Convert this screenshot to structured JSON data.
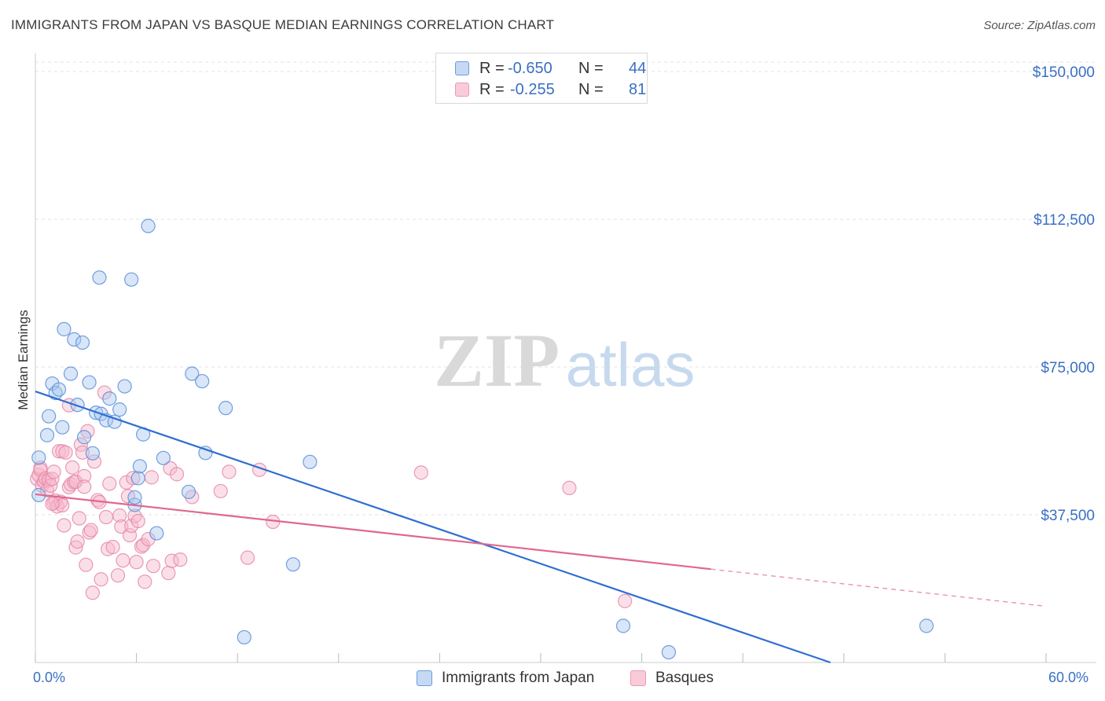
{
  "title": "IMMIGRANTS FROM JAPAN VS BASQUE MEDIAN EARNINGS CORRELATION CHART",
  "source": "Source: ZipAtlas.com",
  "watermark": {
    "zip": "ZIP",
    "atlas": "atlas"
  },
  "legend_top": {
    "rows": [
      {
        "r_label": "R =",
        "r_value": "-0.650",
        "n_label": "N =",
        "n_value": "44"
      },
      {
        "r_label": "R =",
        "r_value": "-0.255",
        "n_label": "N =",
        "n_value": "81"
      }
    ]
  },
  "colors": {
    "blue_fill": "#a9c7ef",
    "blue_stroke": "#5b8ed8",
    "blue_line": "#2f6fd0",
    "pink_fill": "#f6b9cc",
    "pink_stroke": "#e58aa8",
    "pink_line": "#e0678f",
    "accent_text": "#3a6fc4",
    "grid": "#e3e3e3"
  },
  "chart_data": {
    "type": "scatter",
    "title": "IMMIGRANTS FROM JAPAN VS BASQUE MEDIAN EARNINGS CORRELATION CHART",
    "xlabel": "",
    "ylabel": "Median Earnings",
    "xlim": [
      0,
      60
    ],
    "ylim": [
      0,
      150000
    ],
    "x_tick_labels": [
      "0.0%",
      "60.0%"
    ],
    "y_ticks": [
      37500,
      75000,
      112500,
      150000
    ],
    "y_tick_labels": [
      "$37,500",
      "$75,000",
      "$112,500",
      "$150,000"
    ],
    "legend": [
      "Immigrants from Japan",
      "Basques"
    ],
    "series": [
      {
        "name": "Immigrants from Japan",
        "r": -0.65,
        "n": 44,
        "trend": {
          "x0": 0,
          "y0": 68800,
          "x1": 47.2,
          "y1": 0,
          "dash_to_x": null
        },
        "points": [
          [
            0.2,
            52000
          ],
          [
            0.2,
            42500
          ],
          [
            0.7,
            57700
          ],
          [
            0.8,
            62500
          ],
          [
            1.0,
            70800
          ],
          [
            1.2,
            68400
          ],
          [
            1.4,
            69300
          ],
          [
            1.6,
            59700
          ],
          [
            1.7,
            84600
          ],
          [
            2.1,
            73300
          ],
          [
            2.3,
            82000
          ],
          [
            2.5,
            65400
          ],
          [
            2.8,
            81200
          ],
          [
            2.9,
            57200
          ],
          [
            3.2,
            71100
          ],
          [
            3.4,
            53100
          ],
          [
            3.6,
            63400
          ],
          [
            3.8,
            97700
          ],
          [
            3.9,
            63100
          ],
          [
            4.2,
            61500
          ],
          [
            4.4,
            67000
          ],
          [
            4.7,
            61100
          ],
          [
            5.0,
            64200
          ],
          [
            5.3,
            70100
          ],
          [
            5.7,
            97200
          ],
          [
            5.9,
            40000
          ],
          [
            5.9,
            41900
          ],
          [
            6.1,
            46800
          ],
          [
            6.2,
            49800
          ],
          [
            6.4,
            57900
          ],
          [
            6.7,
            110800
          ],
          [
            7.2,
            32800
          ],
          [
            7.6,
            51900
          ],
          [
            9.1,
            43300
          ],
          [
            9.3,
            73300
          ],
          [
            9.9,
            71400
          ],
          [
            10.1,
            53200
          ],
          [
            11.3,
            64600
          ],
          [
            12.4,
            6400
          ],
          [
            15.3,
            24900
          ],
          [
            16.3,
            50900
          ],
          [
            34.9,
            9300
          ],
          [
            37.6,
            2600
          ],
          [
            52.9,
            9300
          ]
        ]
      },
      {
        "name": "Basques",
        "r": -0.255,
        "n": 81,
        "trend": {
          "x0": 0,
          "y0": 42700,
          "x1": 40.1,
          "y1": 23700,
          "dash_to_x": 60
        },
        "points": [
          [
            0.1,
            46600
          ],
          [
            0.2,
            47600
          ],
          [
            0.3,
            49400
          ],
          [
            0.3,
            48900
          ],
          [
            0.4,
            44900
          ],
          [
            0.5,
            46000
          ],
          [
            0.6,
            46700
          ],
          [
            0.7,
            43700
          ],
          [
            0.8,
            46300
          ],
          [
            0.9,
            44900
          ],
          [
            1.0,
            46600
          ],
          [
            1.1,
            40600
          ],
          [
            1.1,
            48400
          ],
          [
            1.2,
            41100
          ],
          [
            1.3,
            39600
          ],
          [
            1.4,
            53600
          ],
          [
            1.5,
            40800
          ],
          [
            1.6,
            53600
          ],
          [
            1.6,
            39900
          ],
          [
            1.7,
            34800
          ],
          [
            1.8,
            53300
          ],
          [
            2.0,
            65300
          ],
          [
            2.0,
            44500
          ],
          [
            2.1,
            45200
          ],
          [
            2.2,
            49500
          ],
          [
            2.3,
            45800
          ],
          [
            2.4,
            45900
          ],
          [
            2.4,
            29200
          ],
          [
            2.5,
            30700
          ],
          [
            2.6,
            36600
          ],
          [
            2.7,
            55300
          ],
          [
            2.8,
            53300
          ],
          [
            2.9,
            47300
          ],
          [
            2.9,
            44600
          ],
          [
            3.0,
            24800
          ],
          [
            3.1,
            58700
          ],
          [
            3.2,
            33000
          ],
          [
            3.3,
            33600
          ],
          [
            3.4,
            17700
          ],
          [
            3.5,
            51000
          ],
          [
            3.7,
            41200
          ],
          [
            3.8,
            40700
          ],
          [
            3.9,
            21100
          ],
          [
            4.1,
            68500
          ],
          [
            4.2,
            36900
          ],
          [
            4.3,
            28800
          ],
          [
            4.4,
            45400
          ],
          [
            4.6,
            29300
          ],
          [
            4.9,
            22100
          ],
          [
            5.0,
            37300
          ],
          [
            5.1,
            34500
          ],
          [
            5.2,
            25900
          ],
          [
            5.4,
            45700
          ],
          [
            5.5,
            42200
          ],
          [
            5.6,
            32300
          ],
          [
            5.7,
            34700
          ],
          [
            5.8,
            46800
          ],
          [
            5.9,
            37200
          ],
          [
            6.0,
            25500
          ],
          [
            6.1,
            35900
          ],
          [
            6.3,
            29400
          ],
          [
            6.4,
            29800
          ],
          [
            6.5,
            20500
          ],
          [
            6.7,
            31300
          ],
          [
            6.9,
            47000
          ],
          [
            7.0,
            24500
          ],
          [
            7.9,
            22700
          ],
          [
            8.0,
            49300
          ],
          [
            8.1,
            25800
          ],
          [
            8.4,
            47800
          ],
          [
            8.6,
            26100
          ],
          [
            9.3,
            42000
          ],
          [
            11.0,
            43500
          ],
          [
            11.5,
            48400
          ],
          [
            12.6,
            26600
          ],
          [
            13.3,
            48900
          ],
          [
            14.1,
            35700
          ],
          [
            22.9,
            48200
          ],
          [
            31.7,
            44300
          ],
          [
            35.0,
            15600
          ],
          [
            1.0,
            40300
          ]
        ]
      }
    ]
  }
}
